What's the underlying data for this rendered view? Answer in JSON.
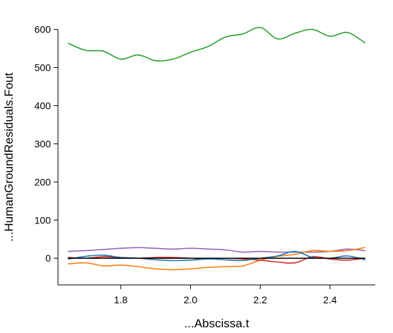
{
  "chart_data": {
    "type": "line",
    "title": "",
    "xlabel": "...Abscissa.t",
    "ylabel": "...HumanGroundResiduals.Fout",
    "xlim": [
      1.62,
      2.53
    ],
    "ylim": [
      -70,
      640
    ],
    "x_ticks": [
      1.8,
      2.0,
      2.2,
      2.4
    ],
    "y_ticks": [
      0,
      100,
      200,
      300,
      400,
      500,
      600
    ],
    "x_tick_labels": [
      "1.8",
      "2.0",
      "2.2",
      "2.4"
    ],
    "y_tick_labels": [
      "0",
      "100",
      "200",
      "300",
      "400",
      "500",
      "600"
    ],
    "grid": false,
    "legend": "none",
    "x": [
      1.65,
      1.7,
      1.75,
      1.8,
      1.85,
      1.9,
      1.95,
      2.0,
      2.05,
      2.1,
      2.15,
      2.2,
      2.25,
      2.3,
      2.35,
      2.4,
      2.45,
      2.5
    ],
    "series": [
      {
        "color": "#2ca02c",
        "values": [
          563,
          545,
          543,
          522,
          533,
          518,
          522,
          540,
          555,
          580,
          588,
          605,
          575,
          590,
          600,
          582,
          592,
          565
        ]
      },
      {
        "color": "#9467bd",
        "values": [
          18,
          20,
          23,
          26,
          28,
          26,
          24,
          26,
          24,
          22,
          16,
          18,
          16,
          16,
          16,
          18,
          24,
          20
        ]
      },
      {
        "color": "#ff7f0e",
        "values": [
          -15,
          -12,
          -20,
          -18,
          -22,
          -28,
          -30,
          -28,
          -24,
          -22,
          -20,
          -5,
          5,
          10,
          20,
          18,
          20,
          28
        ]
      },
      {
        "color": "#d62728",
        "values": [
          2,
          0,
          4,
          2,
          0,
          2,
          2,
          0,
          -2,
          0,
          -2,
          -5,
          -10,
          -12,
          4,
          -2,
          -5,
          0
        ]
      },
      {
        "color": "#1f77b4",
        "values": [
          -2,
          5,
          8,
          2,
          0,
          -4,
          -6,
          -5,
          -2,
          -4,
          -6,
          0,
          6,
          18,
          2,
          0,
          6,
          -4
        ]
      },
      {
        "color": "#000000",
        "values": [
          0,
          0,
          0,
          0,
          0,
          0,
          0,
          0,
          0,
          0,
          0,
          0,
          0,
          0,
          0,
          0,
          0,
          0
        ]
      }
    ]
  }
}
